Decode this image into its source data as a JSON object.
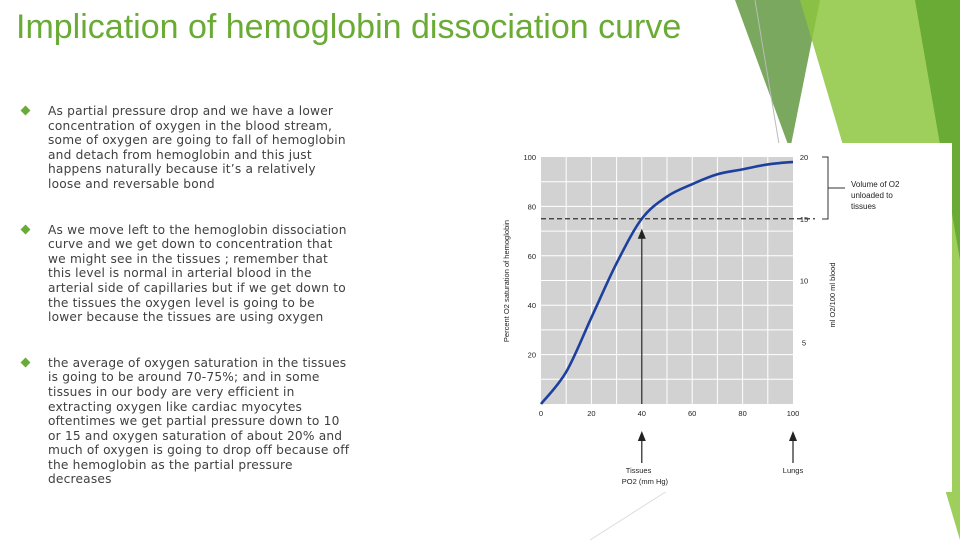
{
  "slide": {
    "title": "Implication of hemoglobin dissociation curve",
    "bullets": [
      "As partial pressure drop and we have a lower concentration of oxygen in the blood stream, some of oxygen are going to fall of hemoglobin and detach from hemoglobin and this just happens naturally because it’s a relatively loose and reversable bond",
      "As we move left to the hemoglobin dissociation curve and we get down to concentration that we might see in the tissues ; remember that this level is normal in arterial blood in the arterial side of capillaries but if we get down to the tissues the oxygen level is going to be lower because the tissues are using oxygen",
      "the average of oxygen saturation in the tissues is going to be around 70-75%; and in some tissues in our body are very efficient in extracting oxygen like cardiac myocytes  oftentimes we get partial pressure down to 10 or 15 and oxygen saturation of about 20%  and much of oxygen is going to drop off because off the hemoglobin as the partial pressure decreases"
    ]
  },
  "colors": {
    "title": "#6aab35",
    "bullet": "#6aab35",
    "text": "#404040",
    "curve": "#1d3f9e",
    "chart_bg": "#d2d2d2",
    "grid": "#ffffff"
  },
  "chart_data": {
    "type": "line",
    "x": [
      0,
      10,
      20,
      30,
      40,
      50,
      60,
      70,
      80,
      90,
      100
    ],
    "series": [
      {
        "values": [
          0,
          13,
          35,
          57,
          75,
          84,
          89,
          93,
          95,
          97,
          98
        ]
      }
    ],
    "x_ticks": [
      "0",
      "20",
      "40",
      "60",
      "80",
      "100"
    ],
    "y_ticks": [
      "20",
      "40",
      "60",
      "80",
      "100"
    ],
    "y2_ticks": [
      "5",
      "10",
      "15",
      "20"
    ],
    "ylabel": "Percent O2 saturation of hemoglobin",
    "y2label": "ml O2/100 ml blood",
    "xlim": [
      0,
      100
    ],
    "ylim": [
      0,
      100
    ],
    "reference_line_y": 75,
    "arrows": [
      {
        "label_line1": "Tissues",
        "label_line2": "PO2 (mm Hg)",
        "x": 40
      },
      {
        "label_line1": "Lungs",
        "label_line2": "",
        "x": 100
      }
    ],
    "bracket_label": [
      "Volume of O2",
      "unloaded to",
      "tissues"
    ],
    "grid": true
  }
}
